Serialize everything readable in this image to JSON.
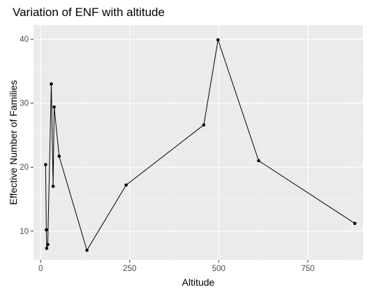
{
  "chart_data": {
    "type": "line",
    "title": "Variation of ENF with altitude",
    "xlabel": "Altitude",
    "ylabel": "Effective Number of Families",
    "xlim": [
      -20,
      905
    ],
    "ylim": [
      5.5,
      42.2
    ],
    "x_ticks": [
      0,
      250,
      500,
      750
    ],
    "y_ticks": [
      10,
      20,
      30,
      40
    ],
    "x_minor": [
      125,
      375,
      625,
      875
    ],
    "y_minor": [
      5,
      15,
      25,
      35
    ],
    "grid": true,
    "legend": "none",
    "series": [
      {
        "points": [
          {
            "x": 14,
            "y": 20.4
          },
          {
            "x": 16,
            "y": 10.2
          },
          {
            "x": 17,
            "y": 7.3
          },
          {
            "x": 20,
            "y": 7.9
          },
          {
            "x": 30,
            "y": 33.0
          },
          {
            "x": 35,
            "y": 17.0
          },
          {
            "x": 38,
            "y": 29.4
          },
          {
            "x": 52,
            "y": 21.7
          },
          {
            "x": 130,
            "y": 7.0
          },
          {
            "x": 240,
            "y": 17.2
          },
          {
            "x": 458,
            "y": 26.6
          },
          {
            "x": 498,
            "y": 39.9
          },
          {
            "x": 612,
            "y": 21.0
          },
          {
            "x": 882,
            "y": 11.2
          }
        ]
      }
    ],
    "colors": {
      "panel": "#ebebeb",
      "grid_major": "#ffffff",
      "line": "#000000",
      "point": "#000000"
    }
  }
}
